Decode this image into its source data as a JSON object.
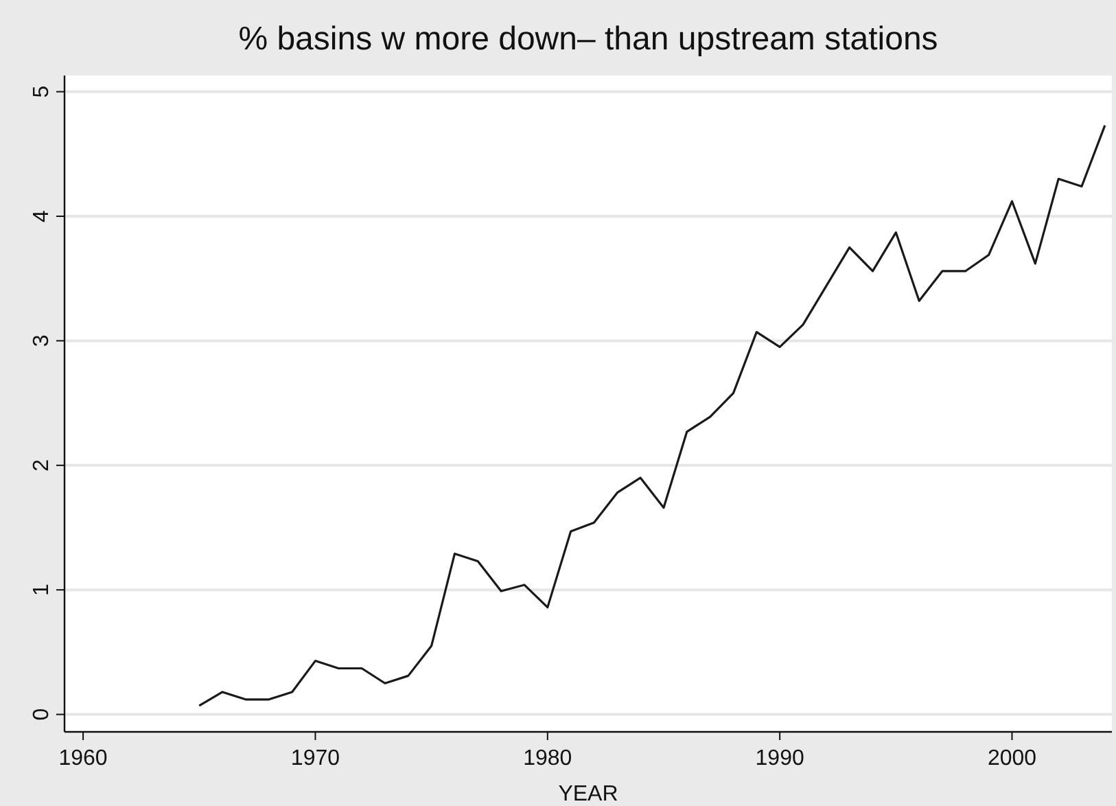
{
  "chart_data": {
    "type": "line",
    "title": "% basins w more down– than upstream  stations",
    "xlabel": "YEAR",
    "x": [
      1965,
      1966,
      1967,
      1968,
      1969,
      1970,
      1971,
      1972,
      1973,
      1974,
      1975,
      1976,
      1977,
      1978,
      1979,
      1980,
      1981,
      1982,
      1983,
      1984,
      1985,
      1986,
      1987,
      1988,
      1989,
      1990,
      1991,
      1992,
      1993,
      1994,
      1995,
      1996,
      1997,
      1998,
      1999,
      2000,
      2001,
      2002,
      2003,
      2004
    ],
    "series": [
      {
        "color": "#1a1a1a",
        "values": [
          0.07,
          0.18,
          0.12,
          0.12,
          0.18,
          0.43,
          0.37,
          0.37,
          0.25,
          0.31,
          0.55,
          1.29,
          1.23,
          0.99,
          1.04,
          0.86,
          1.47,
          1.54,
          1.78,
          1.9,
          1.66,
          2.27,
          2.39,
          2.58,
          3.07,
          2.95,
          3.13,
          3.44,
          3.75,
          3.56,
          3.87,
          3.32,
          3.56,
          3.56,
          3.69,
          4.12,
          3.62,
          4.3,
          4.24,
          4.73
        ]
      }
    ],
    "xlim": [
      1959.2,
      2004.3
    ],
    "xticks": [
      1960,
      1970,
      1980,
      1990,
      2000
    ],
    "ylim": [
      -0.14,
      5.13
    ],
    "yticks": [
      0,
      1,
      2,
      3,
      4,
      5
    ],
    "grid": "y",
    "marker": "none",
    "line_style": "solid"
  }
}
